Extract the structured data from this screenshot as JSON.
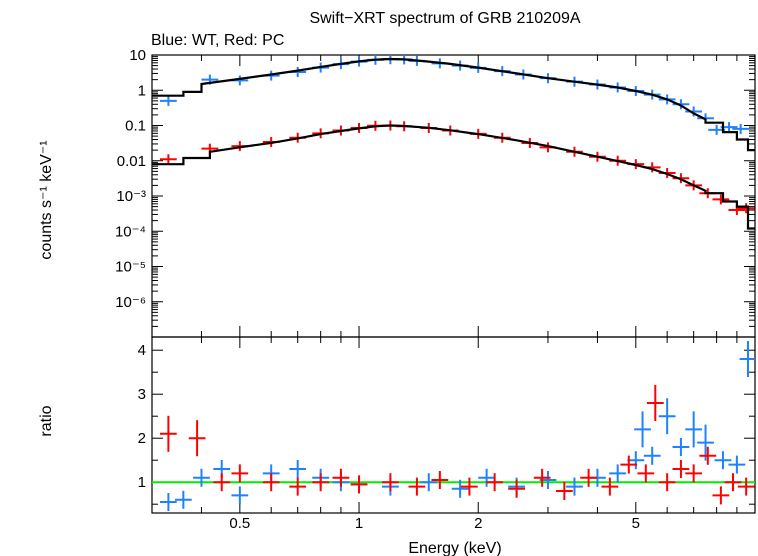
{
  "chart_data": [
    {
      "type": "scatter",
      "title": "Swift−XRT spectrum of GRB 210209A",
      "subtitle": "Blue: WT, Red: PC",
      "xlabel": "",
      "ylabel": "counts s⁻¹ keV⁻¹",
      "xscale": "log",
      "yscale": "log",
      "xlim": [
        0.3,
        10
      ],
      "ylim": [
        1e-07,
        10
      ],
      "yticks": [
        {
          "value": 10,
          "label": "10"
        },
        {
          "value": 1,
          "label": "1"
        },
        {
          "value": 0.1,
          "label": "0.1"
        },
        {
          "value": 0.01,
          "label": "0.01"
        },
        {
          "value": 0.001,
          "label": "10⁻³"
        },
        {
          "value": 0.0001,
          "label": "10⁻⁴"
        },
        {
          "value": 1e-05,
          "label": "10⁻⁵"
        },
        {
          "value": 1e-06,
          "label": "10⁻⁶"
        }
      ],
      "colors": {
        "WT": "#1e82ff",
        "PC": "#ff0000",
        "model": "#000000"
      },
      "series": [
        {
          "key": "WT",
          "points": [
            [
              0.33,
              0.5
            ],
            [
              0.42,
              2.0
            ],
            [
              0.5,
              1.9
            ],
            [
              0.6,
              2.6
            ],
            [
              0.7,
              3.3
            ],
            [
              0.8,
              4.4
            ],
            [
              0.9,
              5.5
            ],
            [
              1.0,
              6.5
            ],
            [
              1.1,
              7.3
            ],
            [
              1.2,
              7.6
            ],
            [
              1.3,
              7.5
            ],
            [
              1.4,
              6.8
            ],
            [
              1.6,
              5.8
            ],
            [
              1.8,
              5.0
            ],
            [
              2.0,
              4.3
            ],
            [
              2.3,
              3.5
            ],
            [
              2.6,
              2.8
            ],
            [
              3.0,
              2.2
            ],
            [
              3.5,
              1.75
            ],
            [
              4.0,
              1.45
            ],
            [
              4.5,
              1.2
            ],
            [
              5.0,
              0.95
            ],
            [
              5.5,
              0.75
            ],
            [
              6.0,
              0.55
            ],
            [
              6.5,
              0.4
            ],
            [
              7.0,
              0.25
            ],
            [
              7.5,
              0.16
            ],
            [
              8.0,
              0.075
            ],
            [
              8.6,
              0.09
            ],
            [
              9.2,
              0.08
            ]
          ]
        },
        {
          "key": "PC",
          "points": [
            [
              0.33,
              0.011
            ],
            [
              0.42,
              0.022
            ],
            [
              0.5,
              0.026
            ],
            [
              0.6,
              0.034
            ],
            [
              0.7,
              0.045
            ],
            [
              0.8,
              0.06
            ],
            [
              0.9,
              0.072
            ],
            [
              1.0,
              0.085
            ],
            [
              1.1,
              0.098
            ],
            [
              1.2,
              0.1
            ],
            [
              1.3,
              0.095
            ],
            [
              1.5,
              0.085
            ],
            [
              1.7,
              0.072
            ],
            [
              2.0,
              0.058
            ],
            [
              2.3,
              0.045
            ],
            [
              2.7,
              0.032
            ],
            [
              3.0,
              0.024
            ],
            [
              3.5,
              0.018
            ],
            [
              4.0,
              0.013
            ],
            [
              4.5,
              0.01
            ],
            [
              5.0,
              0.008
            ],
            [
              5.5,
              0.0065
            ],
            [
              6.0,
              0.0045
            ],
            [
              6.5,
              0.0032
            ],
            [
              7.0,
              0.002
            ],
            [
              7.6,
              0.0012
            ],
            [
              8.2,
              0.0008
            ],
            [
              9.0,
              0.0004
            ],
            [
              9.5,
              0.00045
            ]
          ]
        }
      ],
      "models": [
        {
          "key": "WT",
          "points": [
            [
              0.3,
              0.7
            ],
            [
              0.36,
              0.7
            ],
            [
              0.36,
              0.9
            ],
            [
              0.4,
              0.9
            ],
            [
              0.4,
              1.5
            ],
            [
              0.5,
              2.1
            ],
            [
              0.6,
              2.8
            ],
            [
              0.7,
              3.6
            ],
            [
              0.8,
              4.6
            ],
            [
              0.9,
              5.6
            ],
            [
              1.0,
              6.6
            ],
            [
              1.1,
              7.4
            ],
            [
              1.2,
              7.7
            ],
            [
              1.3,
              7.5
            ],
            [
              1.5,
              6.5
            ],
            [
              1.7,
              5.6
            ],
            [
              2.0,
              4.4
            ],
            [
              2.5,
              3.0
            ],
            [
              3.0,
              2.2
            ],
            [
              3.5,
              1.75
            ],
            [
              4.0,
              1.45
            ],
            [
              4.5,
              1.2
            ],
            [
              5.0,
              0.95
            ],
            [
              5.5,
              0.75
            ],
            [
              6.0,
              0.55
            ],
            [
              6.5,
              0.37
            ],
            [
              7.0,
              0.22
            ],
            [
              7.5,
              0.15
            ],
            [
              7.5,
              0.12
            ],
            [
              8.3,
              0.12
            ],
            [
              8.3,
              0.065
            ],
            [
              9.0,
              0.065
            ],
            [
              9.0,
              0.04
            ],
            [
              9.6,
              0.04
            ],
            [
              9.6,
              0.02
            ],
            [
              10,
              0.02
            ]
          ]
        },
        {
          "key": "PC",
          "points": [
            [
              0.3,
              0.008
            ],
            [
              0.36,
              0.008
            ],
            [
              0.36,
              0.012
            ],
            [
              0.42,
              0.012
            ],
            [
              0.42,
              0.018
            ],
            [
              0.5,
              0.024
            ],
            [
              0.6,
              0.032
            ],
            [
              0.7,
              0.043
            ],
            [
              0.8,
              0.057
            ],
            [
              0.9,
              0.07
            ],
            [
              1.0,
              0.083
            ],
            [
              1.1,
              0.095
            ],
            [
              1.2,
              0.1
            ],
            [
              1.3,
              0.097
            ],
            [
              1.5,
              0.086
            ],
            [
              1.7,
              0.073
            ],
            [
              2.0,
              0.057
            ],
            [
              2.5,
              0.038
            ],
            [
              3.0,
              0.026
            ],
            [
              3.5,
              0.018
            ],
            [
              4.0,
              0.013
            ],
            [
              4.5,
              0.0098
            ],
            [
              5.0,
              0.0076
            ],
            [
              5.5,
              0.0058
            ],
            [
              6.0,
              0.0042
            ],
            [
              6.5,
              0.003
            ],
            [
              7.0,
              0.002
            ],
            [
              7.5,
              0.0014
            ],
            [
              7.5,
              0.0012
            ],
            [
              8.3,
              0.0012
            ],
            [
              8.3,
              0.0007
            ],
            [
              9.0,
              0.0007
            ],
            [
              9.0,
              0.0005
            ],
            [
              9.6,
              0.0005
            ],
            [
              9.6,
              0.00012
            ],
            [
              10,
              0.00012
            ]
          ]
        }
      ]
    },
    {
      "type": "scatter",
      "title": "",
      "xlabel": "Energy (keV)",
      "ylabel": "ratio",
      "xscale": "log",
      "yscale": "linear",
      "xlim": [
        0.3,
        10
      ],
      "ylim": [
        0.3,
        4.3
      ],
      "xticks": [
        {
          "value": 0.5,
          "label": "0.5"
        },
        {
          "value": 1,
          "label": "1"
        },
        {
          "value": 2,
          "label": "2"
        },
        {
          "value": 5,
          "label": "5"
        }
      ],
      "yticks": [
        {
          "value": 1,
          "label": "1"
        },
        {
          "value": 2,
          "label": "2"
        },
        {
          "value": 3,
          "label": "3"
        },
        {
          "value": 4,
          "label": "4"
        }
      ],
      "reference_line": 1,
      "colors": {
        "WT": "#1e82ff",
        "PC": "#ff0000",
        "reference": "#00ee00"
      },
      "series": [
        {
          "key": "WT",
          "points": [
            [
              0.33,
              0.55
            ],
            [
              0.36,
              0.6
            ],
            [
              0.4,
              1.1
            ],
            [
              0.45,
              1.3
            ],
            [
              0.5,
              0.7
            ],
            [
              0.6,
              1.2
            ],
            [
              0.7,
              1.3
            ],
            [
              0.8,
              1.1
            ],
            [
              0.9,
              1.0
            ],
            [
              1.0,
              0.95
            ],
            [
              1.2,
              0.9
            ],
            [
              1.5,
              1.0
            ],
            [
              1.8,
              0.85
            ],
            [
              2.1,
              1.1
            ],
            [
              2.5,
              0.9
            ],
            [
              3.0,
              1.05
            ],
            [
              3.5,
              0.9
            ],
            [
              4.0,
              1.1
            ],
            [
              4.5,
              1.2
            ],
            [
              5.0,
              1.5
            ],
            [
              5.2,
              2.2
            ],
            [
              5.5,
              1.6
            ],
            [
              6.0,
              2.5
            ],
            [
              6.5,
              1.8
            ],
            [
              7.0,
              2.2
            ],
            [
              7.5,
              1.9
            ],
            [
              8.3,
              1.5
            ],
            [
              9.0,
              1.4
            ],
            [
              9.6,
              3.8
            ]
          ]
        },
        {
          "key": "PC",
          "points": [
            [
              0.33,
              2.1
            ],
            [
              0.39,
              2.0
            ],
            [
              0.45,
              1.0
            ],
            [
              0.5,
              1.2
            ],
            [
              0.6,
              1.0
            ],
            [
              0.7,
              0.9
            ],
            [
              0.8,
              1.0
            ],
            [
              0.9,
              1.1
            ],
            [
              1.0,
              0.95
            ],
            [
              1.2,
              1.0
            ],
            [
              1.4,
              0.9
            ],
            [
              1.6,
              1.05
            ],
            [
              1.9,
              0.9
            ],
            [
              2.2,
              1.0
            ],
            [
              2.5,
              0.85
            ],
            [
              2.9,
              1.1
            ],
            [
              3.3,
              0.8
            ],
            [
              3.8,
              1.1
            ],
            [
              4.3,
              0.9
            ],
            [
              4.8,
              1.4
            ],
            [
              5.3,
              1.2
            ],
            [
              5.6,
              2.8
            ],
            [
              6.0,
              1.0
            ],
            [
              6.5,
              1.3
            ],
            [
              7.0,
              1.2
            ],
            [
              7.6,
              1.6
            ],
            [
              8.2,
              0.7
            ],
            [
              8.8,
              1.0
            ],
            [
              9.5,
              0.9
            ]
          ]
        }
      ]
    }
  ]
}
